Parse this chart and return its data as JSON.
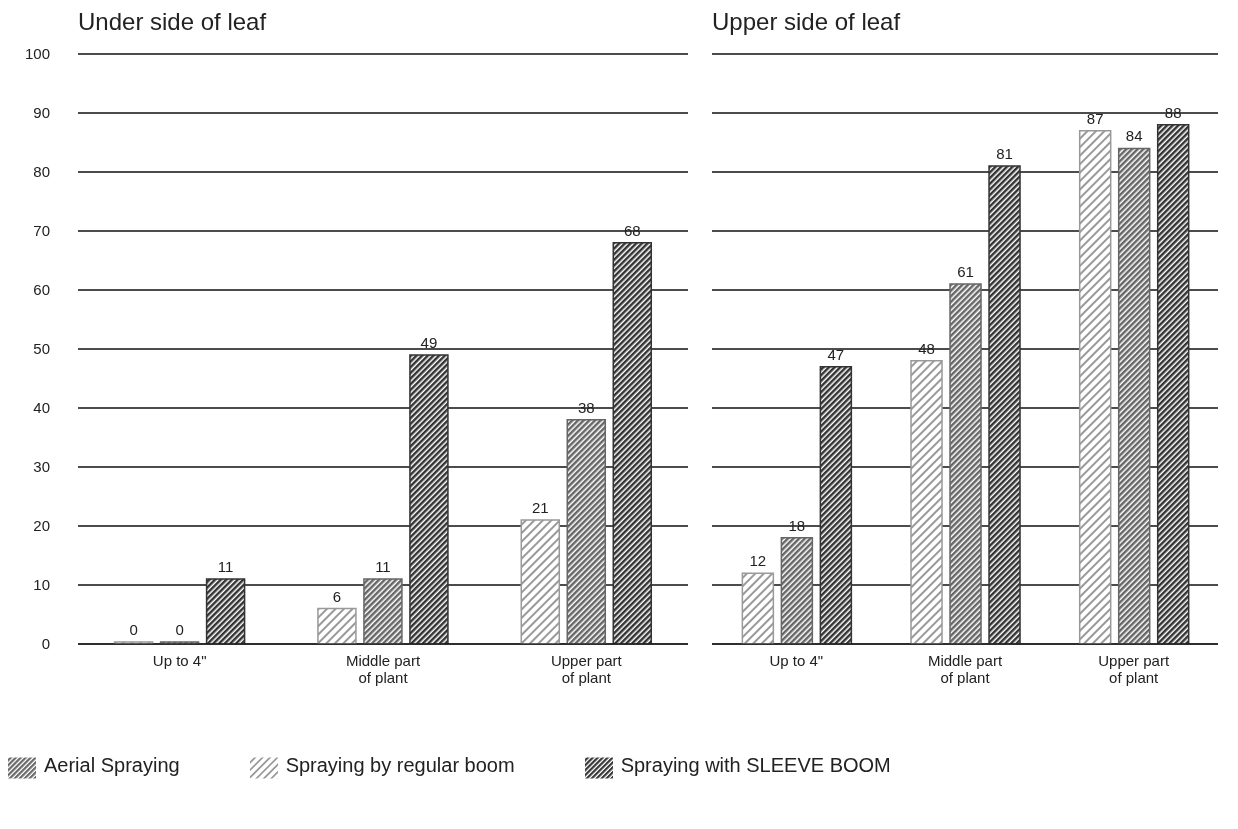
{
  "chart_data": [
    {
      "type": "bar",
      "title": "Under side of leaf",
      "categories": [
        "Up to 4\"",
        "Middle part of plant",
        "Upper part of plant"
      ],
      "series": [
        {
          "name": "Spraying by regular boom",
          "color": "#999999",
          "values": [
            0,
            6,
            21
          ]
        },
        {
          "name": "Aerial Spraying",
          "color": "#666666",
          "values": [
            0,
            11,
            38
          ]
        },
        {
          "name": "Spraying with SLEEVE BOOM",
          "color": "#333333",
          "values": [
            11,
            49,
            68
          ]
        }
      ],
      "ylim": [
        0,
        100
      ],
      "yticks": [
        0,
        10,
        20,
        30,
        40,
        50,
        60,
        70,
        80,
        90,
        100
      ],
      "grid": "y",
      "data_labels": true,
      "legend": "bottom"
    },
    {
      "type": "bar",
      "title": "Upper side of leaf",
      "categories": [
        "Up to 4\"",
        "Middle part of plant",
        "Upper part of plant"
      ],
      "series": [
        {
          "color": "#999999",
          "values": [
            12,
            48,
            87
          ]
        },
        {
          "color": "#666666",
          "values": [
            18,
            61,
            84
          ]
        },
        {
          "color": "#333333",
          "values": [
            47,
            81,
            88
          ]
        }
      ],
      "ylim": [
        0,
        100
      ],
      "yticks": [
        0,
        10,
        20,
        30,
        40,
        50,
        60,
        70,
        80,
        90,
        100
      ],
      "grid": "y",
      "data_labels": true,
      "tick_labels": "x"
    }
  ]
}
